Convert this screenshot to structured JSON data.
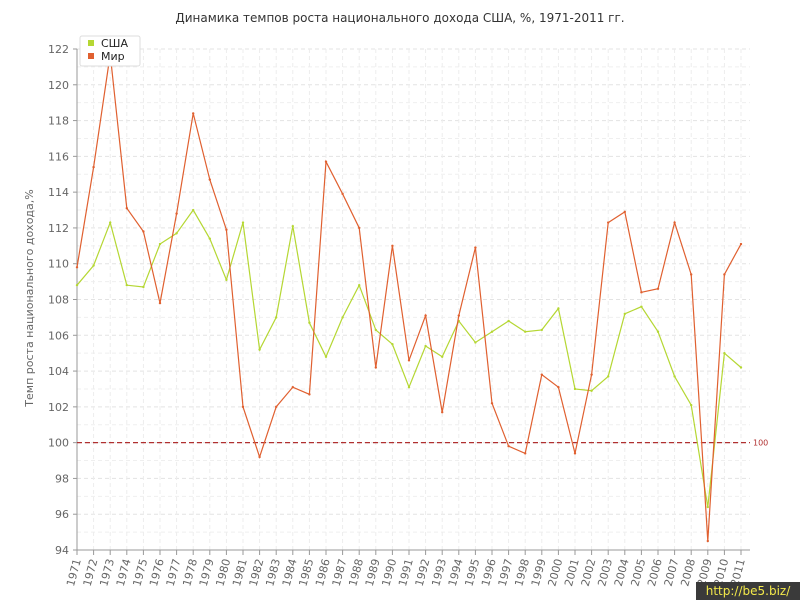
{
  "chart_data": {
    "type": "line",
    "title": "Динамика темпов роста национального дохода США, %, 1971-2011 гг.",
    "ylabel": "Темп роста национального дохода,%",
    "xlabel": "",
    "ylim": [
      94,
      122
    ],
    "yticks": [
      94,
      96,
      98,
      100,
      102,
      104,
      106,
      108,
      110,
      112,
      114,
      116,
      118,
      120,
      122
    ],
    "x": [
      1971,
      1972,
      1973,
      1974,
      1975,
      1976,
      1977,
      1978,
      1979,
      1980,
      1981,
      1982,
      1983,
      1984,
      1985,
      1986,
      1987,
      1988,
      1989,
      1990,
      1991,
      1992,
      1993,
      1994,
      1995,
      1996,
      1997,
      1998,
      1999,
      2000,
      2001,
      2002,
      2003,
      2004,
      2005,
      2006,
      2007,
      2008,
      2009,
      2010,
      2011
    ],
    "grid": true,
    "legend_position": "top-left",
    "reference_line": {
      "value": 100,
      "label": "100",
      "color": "#b03030",
      "style": "dashed"
    },
    "series": [
      {
        "name": "США",
        "color": "#b5d733",
        "values": [
          108.8,
          109.9,
          112.3,
          108.8,
          108.7,
          111.1,
          111.7,
          113.0,
          111.4,
          109.1,
          112.3,
          105.2,
          107.0,
          112.1,
          106.7,
          104.8,
          107.0,
          108.8,
          106.3,
          105.5,
          103.1,
          105.4,
          104.8,
          106.8,
          105.6,
          106.2,
          106.8,
          106.2,
          106.3,
          107.5,
          103.0,
          102.9,
          103.7,
          107.2,
          107.6,
          106.2,
          103.7,
          102.1,
          96.4,
          105.0,
          104.2
        ]
      },
      {
        "name": "Мир",
        "color": "#e06030",
        "values": [
          109.8,
          115.4,
          121.7,
          113.1,
          111.8,
          107.8,
          112.8,
          118.4,
          114.7,
          111.9,
          102.0,
          99.2,
          102.0,
          103.1,
          102.7,
          115.7,
          113.9,
          112.0,
          104.2,
          111.0,
          104.6,
          107.1,
          101.7,
          107.1,
          110.9,
          102.2,
          99.8,
          99.4,
          103.8,
          103.1,
          99.4,
          103.8,
          112.3,
          112.9,
          108.4,
          108.6,
          112.3,
          109.4,
          94.5,
          109.4,
          111.1
        ]
      }
    ]
  },
  "watermark": "http://be5.biz/"
}
